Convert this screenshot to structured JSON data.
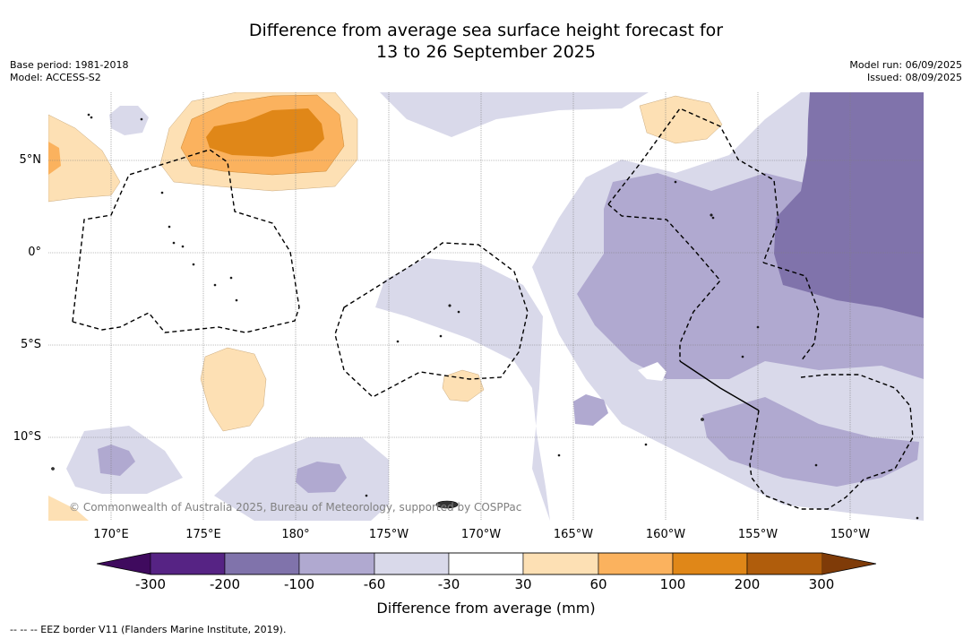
{
  "title": {
    "line1": "Difference from average sea surface height forecast for",
    "line2": "13 to 26 September 2025"
  },
  "meta_left": {
    "base_period": "Base period: 1981-2018",
    "model": "Model: ACCESS-S2"
  },
  "meta_right": {
    "model_run": "Model run: 06/09/2025",
    "issued": "Issued: 08/09/2025"
  },
  "map": {
    "lat_labels": [
      "5°N",
      "0°",
      "5°S",
      "10°S"
    ],
    "lon_labels": [
      "170°E",
      "175°E",
      "180°",
      "175°W",
      "170°W",
      "165°W",
      "160°W",
      "155°W",
      "150°W"
    ],
    "copyright": "© Commonwealth of Australia 2025, Bureau of Meteorology, supported by COSPPac",
    "colors": {
      "orange_light": "#fde0b4",
      "orange_mid": "#fbb25e",
      "orange_dark": "#e08718",
      "purple_light": "#d9d9ea",
      "purple_mid": "#b0a9d0",
      "purple_dark": "#8073ab"
    }
  },
  "colorbar": {
    "ticks": [
      "-300",
      "-200",
      "-100",
      "-60",
      "-30",
      "30",
      "60",
      "100",
      "200",
      "300"
    ],
    "colors": [
      "#3f0a5e",
      "#562384",
      "#8073ab",
      "#b0a9d0",
      "#d9d9ea",
      "#ffffff",
      "#fde0b4",
      "#fbb25e",
      "#e08718",
      "#b05d0c",
      "#7f3b08"
    ],
    "label": "Difference from average (mm)"
  },
  "footnote": "--  --  -- EEZ border V11 (Flanders Marine Institute, 2019)."
}
